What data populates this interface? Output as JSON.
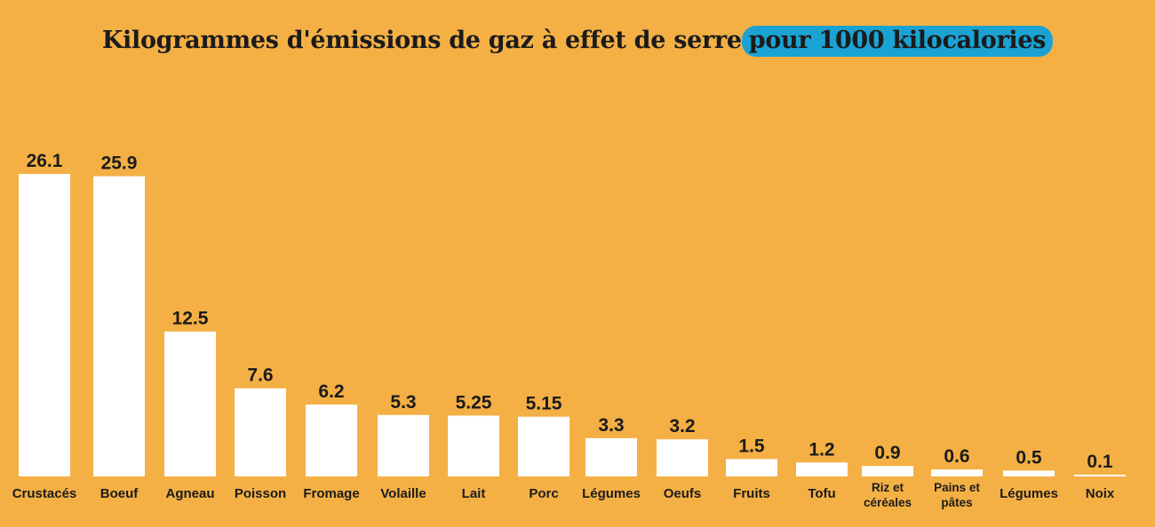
{
  "title": {
    "main": "Kilogrammes d'émissions de gaz à effet de serre",
    "highlight": "pour 1000 kilocalories"
  },
  "colors": {
    "background": "#F4B045",
    "bar": "#FFFFFF",
    "highlight": "#1AA3D2",
    "text": "#1b1b1b"
  },
  "chart_data": {
    "type": "bar",
    "title": "Kilogrammes d'émissions de gaz à effet de serre pour 1000 kilocalories",
    "xlabel": "",
    "ylabel": "",
    "grid": false,
    "legend": "none",
    "ylim": [
      0,
      26.1
    ],
    "categories": [
      "Crustacés",
      "Boeuf",
      "Agneau",
      "Poisson",
      "Fromage",
      "Volaille",
      "Lait",
      "Porc",
      "Légumes",
      "Oeufs",
      "Fruits",
      "Tofu",
      "Riz et céréales",
      "Pains et pâtes",
      "Légumes",
      "Noix"
    ],
    "values": [
      26.1,
      25.9,
      12.5,
      7.6,
      6.2,
      5.3,
      5.25,
      5.15,
      3.3,
      3.2,
      1.5,
      1.2,
      0.9,
      0.6,
      0.5,
      0.1
    ],
    "value_labels": [
      "26.1",
      "25.9",
      "12.5",
      "7.6",
      "6.2",
      "5.3",
      "5.25",
      "5.15",
      "3.3",
      "3.2",
      "1.5",
      "1.2",
      "0.9",
      "0.6",
      "0.5",
      "0.1"
    ]
  }
}
